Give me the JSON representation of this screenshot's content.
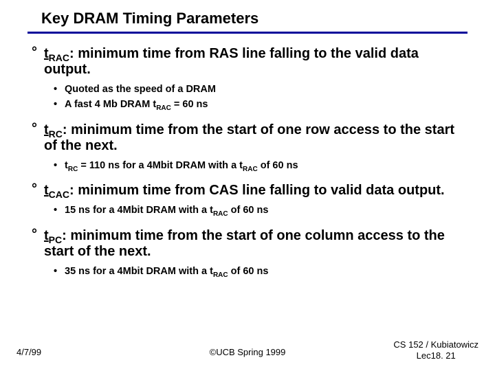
{
  "title": "Key DRAM Timing Parameters",
  "rule_color": "#000099",
  "items": [
    {
      "term": "t",
      "termSub": "RAC",
      "rest": ": minimum time from RAS line falling to the valid data output.",
      "subs": [
        {
          "pre": "Quoted as the speed of a DRAM",
          "term": "",
          "termSub": "",
          "post": ""
        },
        {
          "pre": "A fast 4 Mb DRAM ",
          "term": "t",
          "termSub": "RAC",
          "post": "  = 60 ns"
        }
      ]
    },
    {
      "term": "t",
      "termSub": "RC",
      "rest": ": minimum time from the start of one row access to the start of the next.",
      "subs": [
        {
          "pre": "",
          "term": "t",
          "termSub": "RC",
          "post": "  = 110 ns for a 4Mbit DRAM with a ",
          "term2": "t",
          "term2Sub": "RAC",
          "post2": " of 60 ns"
        }
      ]
    },
    {
      "term": "t",
      "termSub": "CAC",
      "rest": ": minimum time from CAS line falling to valid data output.",
      "subs": [
        {
          "pre": "15 ns for a 4Mbit DRAM with a ",
          "term": "t",
          "termSub": "RAC",
          "post": " of 60 ns"
        }
      ]
    },
    {
      "term": "t",
      "termSub": "PC",
      "rest": ": minimum time from the start of one column access to the start of the next.",
      "subs": [
        {
          "pre": "35 ns for a 4Mbit DRAM with a ",
          "term": "t",
          "termSub": "RAC",
          "post": " of 60 ns"
        }
      ]
    }
  ],
  "footer": {
    "left": "4/7/99",
    "center": "©UCB Spring 1999",
    "right1": "CS 152 / Kubiatowicz",
    "right2": "Lec18. 21"
  }
}
